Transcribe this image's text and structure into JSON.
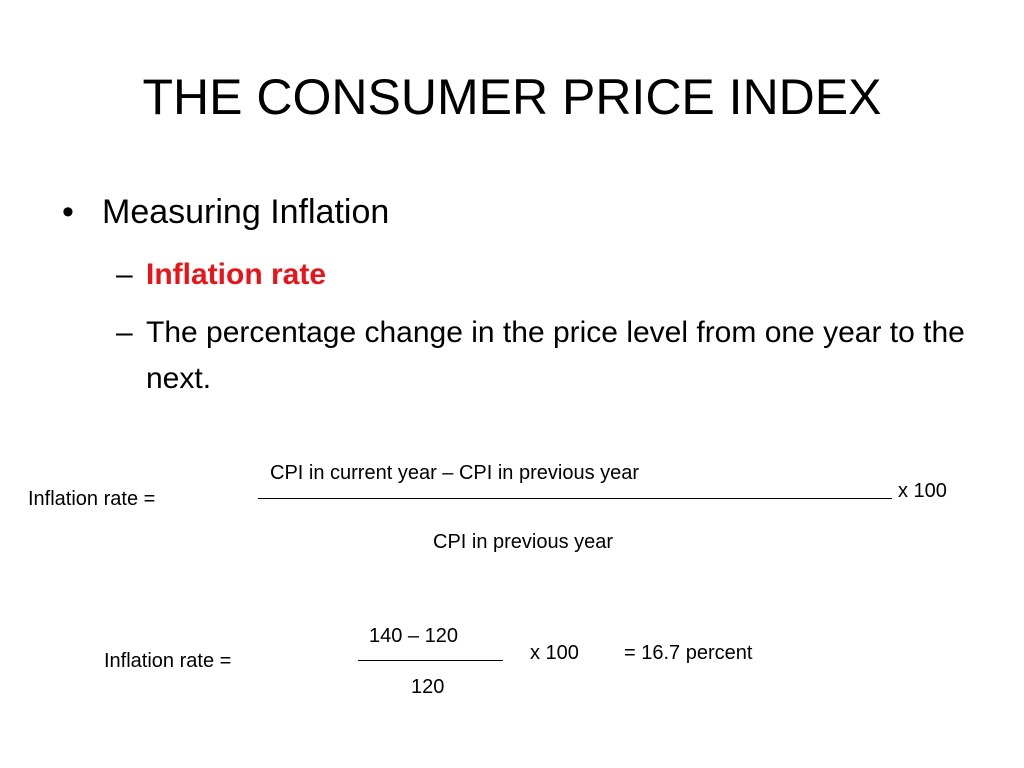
{
  "slide": {
    "title": "THE CONSUMER PRICE INDEX",
    "bullet_marker": "•",
    "bullet": "Measuring Inflation",
    "sub_marker": "–",
    "sub_items": [
      "Inflation rate",
      "The percentage change in the price level from one year to the next."
    ],
    "accent_color": "#e8141a"
  },
  "formula_general": {
    "label": "Inflation rate =",
    "numerator": "CPI in current year – CPI in previous year",
    "denominator": "CPI in previous year",
    "multiplier": "x 100"
  },
  "formula_example": {
    "label": "Inflation rate =",
    "numerator": "140 – 120",
    "denominator": "120",
    "multiplier": "x 100",
    "result": "= 16.7 percent"
  }
}
